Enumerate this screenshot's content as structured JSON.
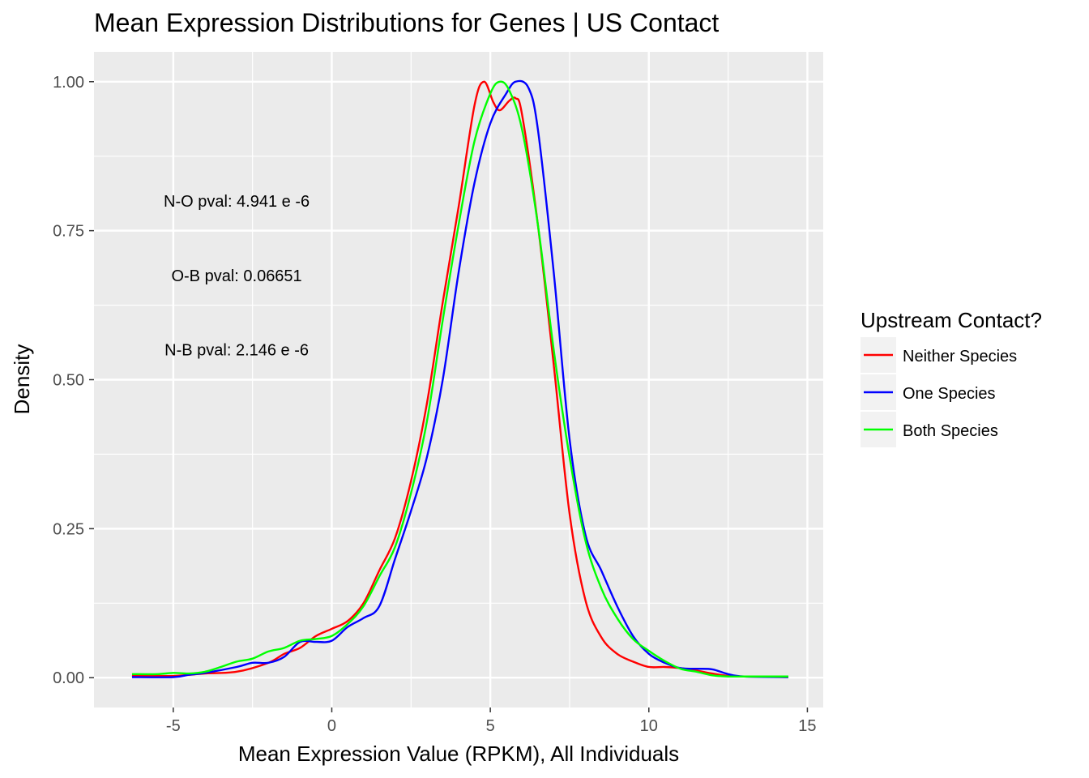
{
  "chart_data": {
    "type": "line",
    "title": "Mean Expression Distributions for Genes | US Contact",
    "xlabel": "Mean Expression Value (RPKM), All Individuals",
    "ylabel": "Density",
    "xlim": [
      -7.5,
      15.5
    ],
    "ylim": [
      -0.05,
      1.05
    ],
    "x_ticks": [
      -5,
      0,
      5,
      10,
      15
    ],
    "x_tick_labels": [
      "-5",
      "0",
      "5",
      "10",
      "15"
    ],
    "y_ticks": [
      0,
      0.25,
      0.5,
      0.75,
      1.0
    ],
    "y_tick_labels": [
      "0.00",
      "0.25",
      "0.50",
      "0.75",
      "1.00"
    ],
    "grid": true,
    "legend": {
      "title": "Upstream Contact?",
      "position": "right",
      "entries": [
        "Neither Species",
        "One Species",
        "Both Species"
      ]
    },
    "annotations": [
      {
        "text": "N-O pval: 4.941 e -6",
        "x": -3.0,
        "y": 0.8
      },
      {
        "text": "O-B pval: 0.06651",
        "x": -3.0,
        "y": 0.675
      },
      {
        "text": "N-B pval: 2.146 e -6",
        "x": -3.0,
        "y": 0.55
      }
    ],
    "series": [
      {
        "name": "Neither Species",
        "color": "#ff0000",
        "x": [
          -6.3,
          -5,
          -4,
          -3,
          -2,
          -1.5,
          -1,
          -0.5,
          0,
          0.5,
          1,
          1.5,
          2,
          2.5,
          3,
          3.5,
          4,
          4.5,
          4.8,
          5.1,
          5.3,
          5.6,
          5.8,
          6,
          6.5,
          7,
          7.5,
          8,
          8.5,
          9,
          9.5,
          10,
          10.5,
          11,
          11.5,
          12,
          12.5,
          13,
          14.4
        ],
        "y": [
          0.003,
          0.003,
          0.007,
          0.01,
          0.025,
          0.04,
          0.05,
          0.07,
          0.082,
          0.095,
          0.125,
          0.18,
          0.235,
          0.33,
          0.46,
          0.63,
          0.79,
          0.96,
          1.0,
          0.965,
          0.952,
          0.968,
          0.972,
          0.945,
          0.76,
          0.525,
          0.275,
          0.13,
          0.068,
          0.04,
          0.027,
          0.018,
          0.018,
          0.016,
          0.012,
          0.007,
          0.003,
          0.002,
          0.001
        ]
      },
      {
        "name": "One Species",
        "color": "#0000ff",
        "x": [
          -6.3,
          -5,
          -4.5,
          -4,
          -3,
          -2.5,
          -2,
          -1.5,
          -1,
          -0.5,
          0,
          0.5,
          1,
          1.5,
          2,
          2.5,
          3,
          3.5,
          4,
          4.5,
          5,
          5.5,
          5.8,
          6.2,
          6.5,
          7,
          7.5,
          8,
          8.5,
          9,
          9.5,
          10,
          10.5,
          11,
          11.5,
          12,
          12.5,
          13,
          14.4
        ],
        "y": [
          0.001,
          0.001,
          0.005,
          0.008,
          0.018,
          0.025,
          0.025,
          0.035,
          0.06,
          0.06,
          0.062,
          0.085,
          0.1,
          0.12,
          0.2,
          0.28,
          0.37,
          0.5,
          0.68,
          0.83,
          0.93,
          0.98,
          1.0,
          0.99,
          0.92,
          0.68,
          0.4,
          0.24,
          0.18,
          0.12,
          0.07,
          0.04,
          0.025,
          0.016,
          0.015,
          0.014,
          0.006,
          0.002,
          0.001
        ]
      },
      {
        "name": "Both Species",
        "color": "#00ff00",
        "x": [
          -6.3,
          -5.5,
          -5,
          -4.5,
          -4,
          -3.5,
          -3,
          -2.5,
          -2,
          -1.5,
          -1,
          -0.5,
          0,
          0.5,
          1,
          1.5,
          2,
          2.5,
          3,
          3.5,
          4,
          4.5,
          5,
          5.3,
          5.6,
          6,
          6.5,
          7,
          7.5,
          8,
          8.5,
          9,
          9.5,
          10,
          10.5,
          11,
          11.5,
          12,
          12.5,
          13,
          14.4
        ],
        "y": [
          0.006,
          0.006,
          0.008,
          0.007,
          0.01,
          0.018,
          0.027,
          0.032,
          0.044,
          0.05,
          0.062,
          0.065,
          0.07,
          0.09,
          0.12,
          0.17,
          0.22,
          0.31,
          0.43,
          0.6,
          0.76,
          0.9,
          0.98,
          1.0,
          0.985,
          0.92,
          0.76,
          0.55,
          0.37,
          0.23,
          0.15,
          0.1,
          0.065,
          0.045,
          0.028,
          0.015,
          0.01,
          0.004,
          0.002,
          0.002,
          0.002
        ]
      }
    ]
  }
}
